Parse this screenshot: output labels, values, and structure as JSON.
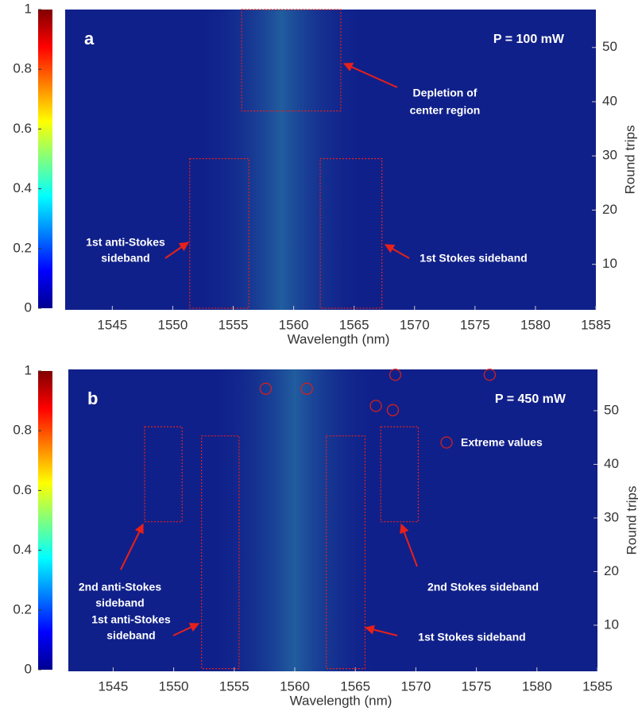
{
  "chart_data": [
    {
      "type": "heatmap",
      "panel_label": "a",
      "power_label": "P = 100 mW",
      "xlabel": "Wavelength (nm)",
      "y2label": "Round trips",
      "xlim": [
        1541.1,
        1585
      ],
      "xticks": [
        1545,
        1550,
        1555,
        1560,
        1565,
        1570,
        1575,
        1580,
        1585
      ],
      "y2lim": [
        1.6,
        57
      ],
      "y2ticks": [
        10,
        20,
        30,
        40,
        50
      ],
      "colorbar": {
        "lim": [
          0,
          1
        ],
        "ticks": [
          0,
          0.2,
          0.4,
          0.6,
          0.8,
          1
        ]
      },
      "regions": [
        {
          "label": [
            "Depletion of",
            "center region"
          ],
          "x": [
            1555.7,
            1563.9
          ],
          "y": [
            38.3,
            57
          ]
        },
        {
          "label": [
            "1st anti-Stokes",
            "sideband"
          ],
          "x": [
            1551.4,
            1556.3
          ],
          "y": [
            1.9,
            29.5
          ]
        },
        {
          "label": [
            "1st Stokes sideband"
          ],
          "x": [
            1562.2,
            1567.3
          ],
          "y": [
            1.9,
            29.5
          ]
        }
      ]
    },
    {
      "type": "heatmap",
      "panel_label": "b",
      "power_label": "P = 450 mW",
      "xlabel": "Wavelength (nm)",
      "y2label": "Round trips",
      "xlim": [
        1541.3,
        1585
      ],
      "xticks": [
        1545,
        1550,
        1555,
        1560,
        1565,
        1570,
        1575,
        1580,
        1585
      ],
      "y2lim": [
        1.4,
        57.7
      ],
      "y2ticks": [
        10,
        20,
        30,
        40,
        50
      ],
      "colorbar": {
        "lim": [
          0,
          1
        ],
        "ticks": [
          0,
          0.2,
          0.4,
          0.6,
          0.8,
          1
        ]
      },
      "regions": [
        {
          "label": [
            "2nd anti-Stokes",
            "sideband"
          ],
          "x": [
            1547.6,
            1550.7
          ],
          "y": [
            29.3,
            47.0
          ]
        },
        {
          "label": [
            "1st anti-Stokes",
            "sideband"
          ],
          "x": [
            1552.3,
            1555.4
          ],
          "y": [
            1.9,
            45.3
          ]
        },
        {
          "label": [
            "2nd Stokes sideband"
          ],
          "x": [
            1567.1,
            1570.2
          ],
          "y": [
            29.3,
            47.0
          ]
        },
        {
          "label": [
            "1st Stokes sideband"
          ],
          "x": [
            1562.6,
            1565.8
          ],
          "y": [
            1.9,
            45.3
          ]
        }
      ],
      "extreme_values": {
        "label": "Extreme values",
        "x": [
          1557.6,
          1561.0,
          1566.7,
          1568.1,
          1568.3,
          1576.1
        ],
        "y": [
          54.1,
          54.1,
          50.9,
          50.1,
          56.7,
          56.7
        ]
      }
    }
  ]
}
